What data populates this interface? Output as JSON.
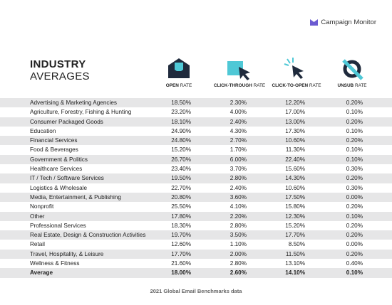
{
  "brand": "Campaign Monitor",
  "title": {
    "line1": "INDUSTRY",
    "line2": "AVERAGES"
  },
  "columns": [
    {
      "bold": "OPEN",
      "rest": "RATE"
    },
    {
      "bold": "CLICK-THROUGH",
      "rest": "RATE"
    },
    {
      "bold": "CLICK-TO-OPEN",
      "rest": "RATE"
    },
    {
      "bold": "UNSUB",
      "rest": "RATE"
    }
  ],
  "table": {
    "rows": [
      [
        "Advertising & Marketing Agencies",
        "18.50%",
        "2.30%",
        "12.20%",
        "0.20%"
      ],
      [
        "Agriculture, Forestry, Fishing & Hunting",
        "23.20%",
        "4.00%",
        "17.00%",
        "0.10%"
      ],
      [
        "Consumer Packaged Goods",
        "18.10%",
        "2.40%",
        "13.00%",
        "0.20%"
      ],
      [
        "Education",
        "24.90%",
        "4.30%",
        "17.30%",
        "0.10%"
      ],
      [
        "Financial Services",
        "24.80%",
        "2.70%",
        "10.60%",
        "0.20%"
      ],
      [
        "Food & Beverages",
        "15.20%",
        "1.70%",
        "11.30%",
        "0.10%"
      ],
      [
        "Government & Politics",
        "26.70%",
        "6.00%",
        "22.40%",
        "0.10%"
      ],
      [
        "Healthcare Services",
        "23.40%",
        "3.70%",
        "15.60%",
        "0.30%"
      ],
      [
        "IT / Tech / Software Services",
        "19.50%",
        "2.80%",
        "14.30%",
        "0.20%"
      ],
      [
        "Logistics & Wholesale",
        "22.70%",
        "2.40%",
        "10.60%",
        "0.30%"
      ],
      [
        "Media, Entertainment, & Publishing",
        "20.80%",
        "3.60%",
        "17.50%",
        "0.00%"
      ],
      [
        "Nonprofit",
        "25.50%",
        "4.10%",
        "15.80%",
        "0.20%"
      ],
      [
        "Other",
        "17.80%",
        "2.20%",
        "12.30%",
        "0.10%"
      ],
      [
        "Professional Services",
        "18.30%",
        "2.80%",
        "15.20%",
        "0.20%"
      ],
      [
        "Real Estate, Design & Construction Activities",
        "19.70%",
        "3.50%",
        "17.70%",
        "0.20%"
      ],
      [
        "Retail",
        "12.60%",
        "1.10%",
        "8.50%",
        "0.00%"
      ],
      [
        "Travel, Hospitality, & Leisure",
        "17.70%",
        "2.00%",
        "11.50%",
        "0.20%"
      ],
      [
        "Wellness & Fitness",
        "21.60%",
        "2.80%",
        "13.10%",
        "0.40%"
      ]
    ],
    "average": [
      "Average",
      "18.00%",
      "2.60%",
      "14.10%",
      "0.10%"
    ]
  },
  "footer": "2021 Global Email Benchmarks data"
}
